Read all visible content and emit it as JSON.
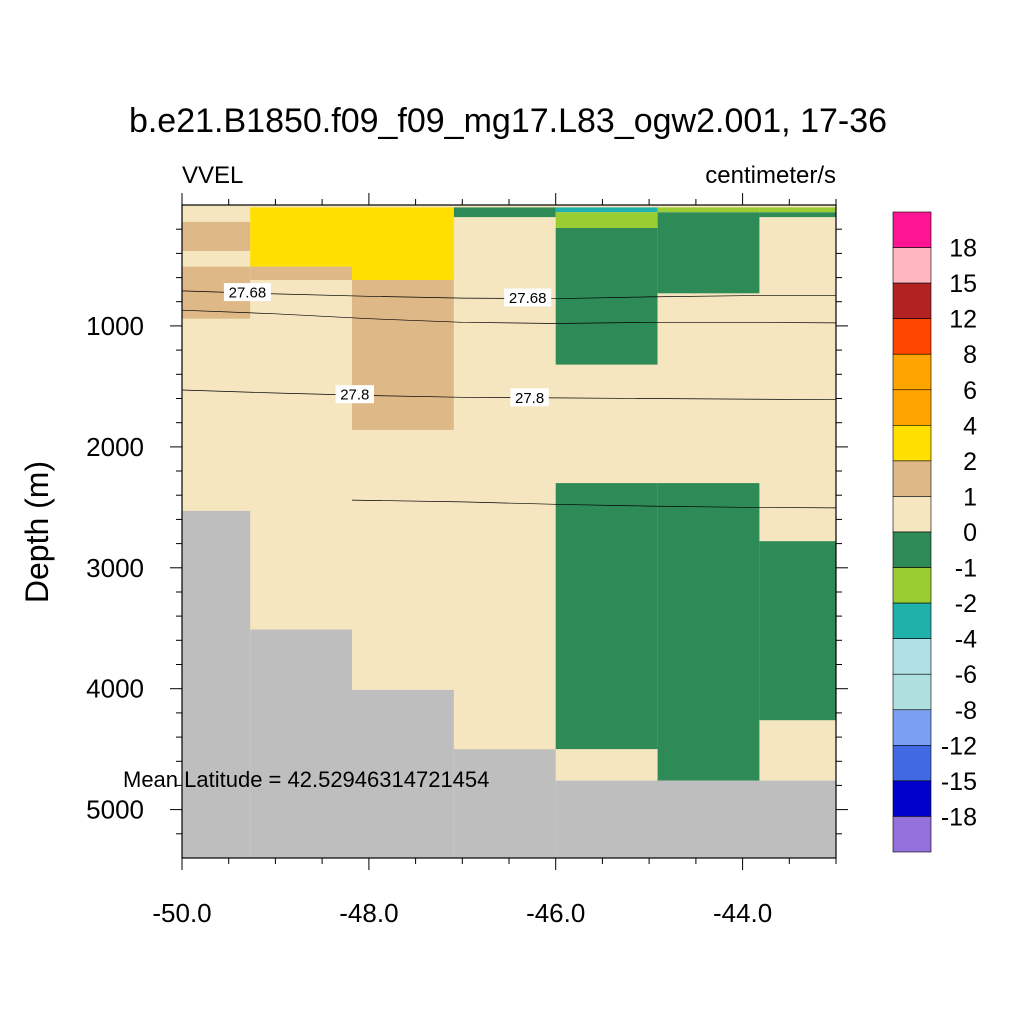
{
  "chart_data": {
    "type": "heatmap",
    "title": "b.e21.B1850.f09_f09_mg17.L83_ogw2.001, 17-36",
    "left_subtitle": "VVEL",
    "right_subtitle": "centimeter/s",
    "ylabel": "Depth (m)",
    "xlabel": "",
    "annotation": "Mean Latitude = 42.52946314721454",
    "xlim": [
      -50.0,
      -43.0
    ],
    "ylim": [
      5400,
      0
    ],
    "x_ticks": [
      "-50.0",
      "-48.0",
      "-46.0",
      "-44.0"
    ],
    "x_tick_values": [
      -50.0,
      -48.0,
      -46.0,
      -44.0
    ],
    "y_ticks": [
      "1000",
      "2000",
      "3000",
      "4000",
      "5000"
    ],
    "y_tick_values": [
      1000,
      2000,
      3000,
      4000,
      5000
    ],
    "colorbar": {
      "labels": [
        "18",
        "15",
        "12",
        "8",
        "6",
        "4",
        "2",
        "1",
        "0",
        "-1",
        "-2",
        "-4",
        "-6",
        "-8",
        "-12",
        "-15",
        "-18"
      ],
      "colors": [
        "#ff1493",
        "#ffb6c1",
        "#b22222",
        "#ff4500",
        "#ffa500",
        "#ffa500",
        "#ffe000",
        "#deb887",
        "#f5e6c0",
        "#2e8b57",
        "#9acd32",
        "#20b2aa",
        "#b0e0e6",
        "#b0dfe0",
        "#7b9ff2",
        "#4169e1",
        "#0000cd",
        "#9370db"
      ]
    },
    "land_color": "#bebebe",
    "cells": [
      {
        "x": [
          -50.0,
          -43.0
        ],
        "y": [
          0,
          5400
        ],
        "color": "#f5e6c0"
      },
      {
        "x": [
          -50.0,
          -49.27
        ],
        "y": [
          20,
          140
        ],
        "color": "#f5e6c0"
      },
      {
        "x": [
          -50.0,
          -49.27
        ],
        "y": [
          140,
          380
        ],
        "color": "#deb887"
      },
      {
        "x": [
          -50.0,
          -49.27
        ],
        "y": [
          380,
          510
        ],
        "color": "#f5e6c0"
      },
      {
        "x": [
          -50.0,
          -49.27
        ],
        "y": [
          510,
          940
        ],
        "color": "#deb887"
      },
      {
        "x": [
          -49.27,
          -48.18
        ],
        "y": [
          20,
          510
        ],
        "color": "#ffe000"
      },
      {
        "x": [
          -48.18,
          -47.09
        ],
        "y": [
          20,
          620
        ],
        "color": "#ffe000"
      },
      {
        "x": [
          -48.18,
          -47.09
        ],
        "y": [
          510,
          620
        ],
        "color": "#ffe000"
      },
      {
        "x": [
          -49.27,
          -48.18
        ],
        "y": [
          510,
          620
        ],
        "color": "#deb887"
      },
      {
        "x": [
          -48.18,
          -47.09
        ],
        "y": [
          620,
          1860
        ],
        "color": "#deb887"
      },
      {
        "x": [
          -47.09,
          -46.0
        ],
        "y": [
          20,
          100
        ],
        "color": "#2e8b57"
      },
      {
        "x": [
          -46.0,
          -44.91
        ],
        "y": [
          20,
          60
        ],
        "color": "#20b2aa"
      },
      {
        "x": [
          -46.0,
          -44.91
        ],
        "y": [
          60,
          190
        ],
        "color": "#9acd32"
      },
      {
        "x": [
          -46.0,
          -44.91
        ],
        "y": [
          190,
          1320
        ],
        "color": "#2e8b57"
      },
      {
        "x": [
          -44.91,
          -43.82
        ],
        "y": [
          20,
          60
        ],
        "color": "#9acd32"
      },
      {
        "x": [
          -44.91,
          -43.82
        ],
        "y": [
          60,
          730
        ],
        "color": "#2e8b57"
      },
      {
        "x": [
          -43.82,
          -43.0
        ],
        "y": [
          20,
          60
        ],
        "color": "#9acd32"
      },
      {
        "x": [
          -43.82,
          -43.0
        ],
        "y": [
          60,
          100
        ],
        "color": "#2e8b57"
      },
      {
        "x": [
          -46.0,
          -44.91
        ],
        "y": [
          2300,
          4500
        ],
        "color": "#2e8b57"
      },
      {
        "x": [
          -44.91,
          -43.82
        ],
        "y": [
          2300,
          4760
        ],
        "color": "#2e8b57"
      },
      {
        "x": [
          -43.82,
          -43.0
        ],
        "y": [
          2780,
          4260
        ],
        "color": "#2e8b57"
      },
      {
        "x": [
          -50.0,
          -49.27
        ],
        "y": [
          2530,
          5400
        ],
        "color": "#bebebe"
      },
      {
        "x": [
          -49.27,
          -48.18
        ],
        "y": [
          3510,
          5400
        ],
        "color": "#bebebe"
      },
      {
        "x": [
          -48.18,
          -47.09
        ],
        "y": [
          4010,
          5400
        ],
        "color": "#bebebe"
      },
      {
        "x": [
          -47.09,
          -46.0
        ],
        "y": [
          4500,
          5400
        ],
        "color": "#bebebe"
      },
      {
        "x": [
          -46.0,
          -43.0
        ],
        "y": [
          4760,
          5400
        ],
        "color": "#bebebe"
      }
    ],
    "contours": [
      {
        "points": [
          [
            -50.0,
            710
          ],
          [
            -49.0,
            735
          ],
          [
            -48.0,
            755
          ],
          [
            -47.0,
            770
          ],
          [
            -46.0,
            775
          ],
          [
            -45.0,
            760
          ],
          [
            -44.0,
            750
          ],
          [
            -43.0,
            750
          ]
        ]
      },
      {
        "points": [
          [
            -50.0,
            870
          ],
          [
            -49.0,
            900
          ],
          [
            -48.0,
            940
          ],
          [
            -47.0,
            970
          ],
          [
            -46.0,
            980
          ],
          [
            -45.0,
            970
          ],
          [
            -44.0,
            970
          ],
          [
            -43.0,
            975
          ]
        ]
      },
      {
        "points": [
          [
            -50.0,
            1530
          ],
          [
            -49.0,
            1555
          ],
          [
            -48.0,
            1575
          ],
          [
            -47.0,
            1590
          ],
          [
            -46.0,
            1595
          ],
          [
            -45.0,
            1600
          ],
          [
            -44.0,
            1605
          ],
          [
            -43.0,
            1610
          ]
        ]
      },
      {
        "points": [
          [
            -48.18,
            2440
          ],
          [
            -47.0,
            2455
          ],
          [
            -46.0,
            2475
          ],
          [
            -45.0,
            2490
          ],
          [
            -44.0,
            2500
          ],
          [
            -43.0,
            2505
          ]
        ]
      }
    ],
    "contour_labels": [
      {
        "text": "27.68",
        "x": -49.3,
        "y": 720
      },
      {
        "text": "27.68",
        "x": -46.3,
        "y": 765
      },
      {
        "text": "27.8",
        "x": -48.15,
        "y": 1565
      },
      {
        "text": "27.8",
        "x": -46.28,
        "y": 1590
      }
    ]
  }
}
